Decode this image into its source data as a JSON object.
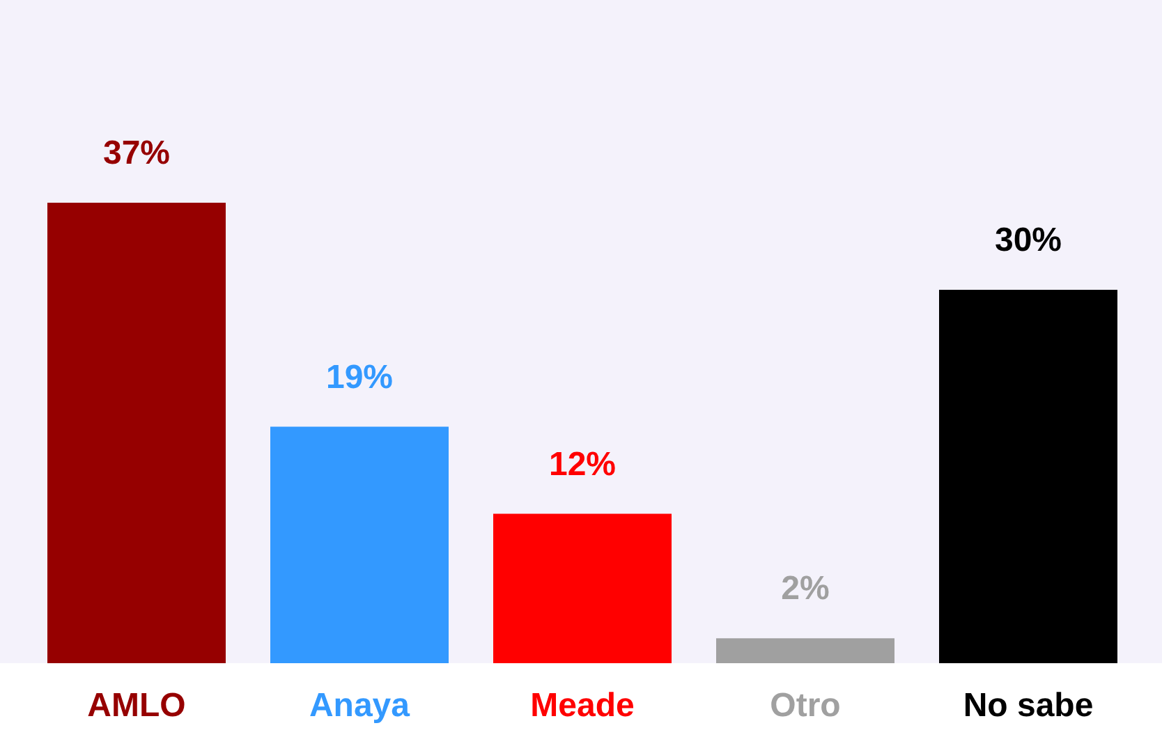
{
  "chart_data": {
    "type": "bar",
    "categories": [
      "AMLO",
      "Anaya",
      "Meade",
      "Otro",
      "No sabe"
    ],
    "values": [
      37,
      19,
      12,
      2,
      30
    ],
    "colors": [
      "#960000",
      "#3399ff",
      "#ff0000",
      "#a0a0a0",
      "#000000"
    ],
    "value_labels": [
      "37%",
      "19%",
      "12%",
      "2%",
      "30%"
    ],
    "grid": false,
    "legend": false
  }
}
